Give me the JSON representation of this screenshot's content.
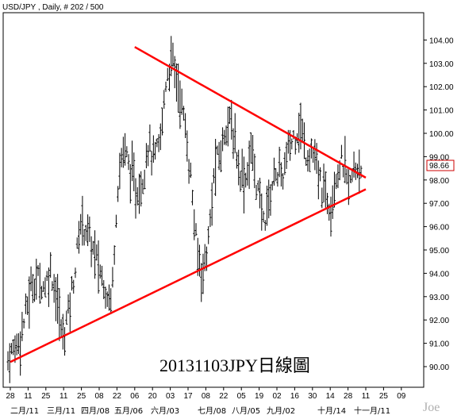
{
  "header": {
    "title": "USD/JPY , Daily, # 202 / 500"
  },
  "annotation": {
    "text": "20131103JPY日線圖"
  },
  "watermark": {
    "text": "Joe"
  },
  "last_price": {
    "value": "98.66"
  },
  "colors": {
    "line": "#ff0000",
    "box": "#cc0000",
    "candle": "#000000",
    "frame": "#000000"
  },
  "chart_data": {
    "type": "ohlc",
    "symbol": "USD/JPY",
    "timeframe": "Daily",
    "ylim": [
      89.5,
      105
    ],
    "y_ticks": [
      "90.00",
      "91.00",
      "92.00",
      "93.00",
      "94.00",
      "95.00",
      "96.00",
      "97.00",
      "98.00",
      "99.00",
      "100.00",
      "101.00",
      "102.00",
      "103.00",
      "104.00"
    ],
    "x_day_ticks": [
      "28",
      "11",
      "25",
      "11",
      "25",
      "08",
      "22",
      "06",
      "20",
      "03",
      "17",
      "08",
      "22",
      "05",
      "19",
      "02",
      "16",
      "30",
      "14",
      "28",
      "11",
      "25",
      "09"
    ],
    "x_month_labels": [
      "二月/11",
      "三月/11",
      "四月/08",
      "五月/06",
      "六月/03",
      "七月/08",
      "八月/05",
      "九月/02",
      "十月/14",
      "十一月/11"
    ],
    "close_path": [
      90.3,
      90.8,
      91.2,
      92.4,
      93.6,
      93.8,
      93.4,
      94.2,
      93.0,
      91.2,
      92.5,
      94.1,
      96.3,
      95.8,
      95.0,
      94.2,
      93.4,
      92.8,
      97.7,
      99.5,
      98.5,
      97.5,
      97.8,
      99.6,
      98.8,
      99.6,
      102.4,
      103.2,
      102.0,
      100.5,
      98.2,
      95.0,
      94.0,
      95.5,
      98.6,
      99.2,
      100.7,
      100.0,
      98.5,
      98.0,
      99.3,
      97.6,
      96.2,
      97.3,
      98.5,
      98.0,
      99.2,
      99.9,
      100.4,
      99.1,
      99.3,
      98.1,
      97.4,
      97.0,
      98.4,
      98.8,
      97.6,
      98.5,
      98.7
    ],
    "trendlines": [
      {
        "name": "upper",
        "from": [
          "2013-05-06",
          103.7
        ],
        "to": [
          "2013-11-04",
          98.1
        ]
      },
      {
        "name": "lower",
        "from": [
          "2013-01-28",
          90.2
        ],
        "to": [
          "2013-11-04",
          97.6
        ]
      }
    ],
    "last_value": 98.66,
    "grid": false
  }
}
